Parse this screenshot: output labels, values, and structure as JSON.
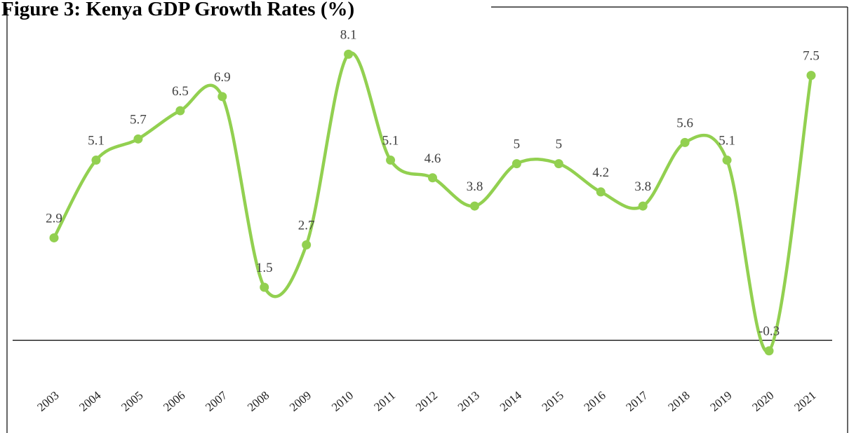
{
  "chart_data": {
    "type": "line",
    "title": "Figure 3: Kenya GDP Growth Rates (%)",
    "categories": [
      "2003",
      "2004",
      "2005",
      "2006",
      "2007",
      "2008",
      "2009",
      "2010",
      "2011",
      "2012",
      "2013",
      "2014",
      "2015",
      "2016",
      "2017",
      "2018",
      "2019",
      "2020",
      "2021"
    ],
    "series": [
      {
        "name": "GDP growth",
        "color": "#92d050",
        "values": [
          2.9,
          5.1,
          5.7,
          6.5,
          6.9,
          1.5,
          2.7,
          8.1,
          5.1,
          4.6,
          3.8,
          5,
          5,
          4.2,
          3.8,
          5.6,
          5.1,
          -0.3,
          7.5
        ]
      }
    ],
    "ylim": [
      -1,
      9
    ]
  }
}
